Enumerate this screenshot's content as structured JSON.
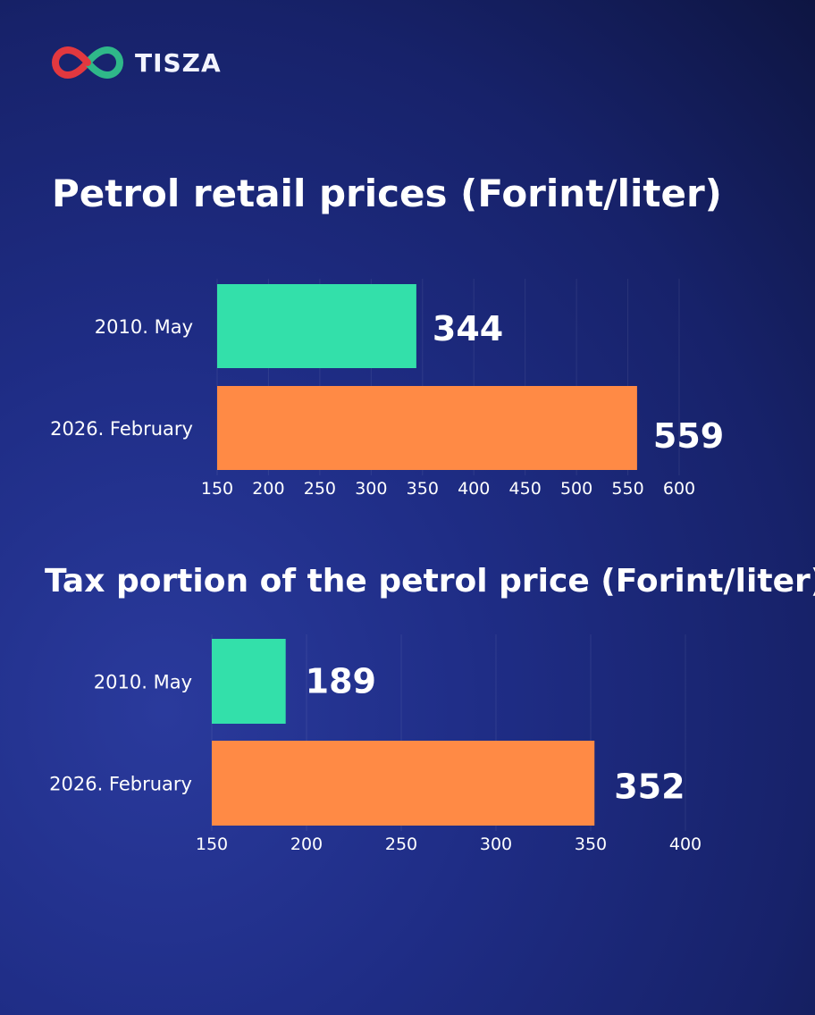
{
  "brand": {
    "name": "TISZA",
    "colors": {
      "red": "#e2383f",
      "green": "#2fb889"
    }
  },
  "colors": {
    "bar_2010": "#33e0aa",
    "bar_2026": "#ff8a45",
    "text": "#ffffff"
  },
  "chart_data": [
    {
      "type": "bar",
      "orientation": "horizontal",
      "title": "Petrol retail prices (Forint/liter)",
      "categories": [
        "2010. May",
        "2026. February"
      ],
      "values": [
        344,
        559
      ],
      "xlim": [
        150,
        600
      ],
      "xticks": [
        150,
        200,
        250,
        300,
        350,
        400,
        450,
        500,
        550,
        600
      ],
      "grid": true
    },
    {
      "type": "bar",
      "orientation": "horizontal",
      "title": "Tax portion of the petrol price (Forint/liter)",
      "categories": [
        "2010. May",
        "2026. February"
      ],
      "values": [
        189,
        352
      ],
      "xlim": [
        150,
        400
      ],
      "xticks": [
        150,
        200,
        250,
        300,
        350,
        400
      ],
      "grid": true
    }
  ]
}
